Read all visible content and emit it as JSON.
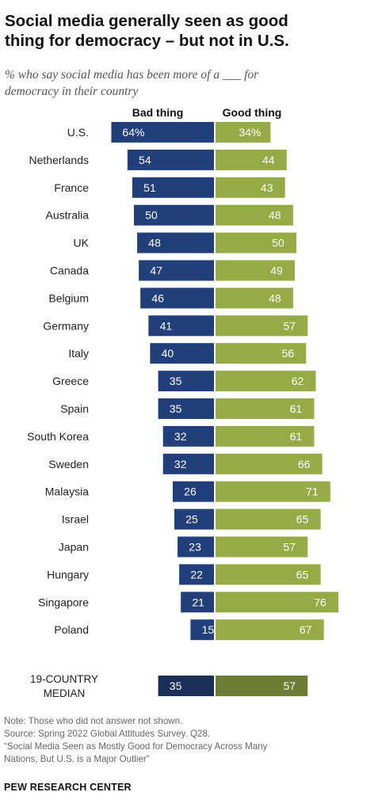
{
  "title_line1": "Social media generally seen as good",
  "title_line2": "thing for democracy – but not in U.S.",
  "subtitle_line1": "% who say social media has been more of a ___ for",
  "subtitle_line2": "democracy in their country",
  "notes": {
    "note": "Note: Those who did not answer not shown.",
    "source": "Source: Spring 2022 Global Attitudes Survey. Q28.",
    "report_line1": "“Social Media Seen as Mostly Good for Democracy Across Many",
    "report_line2": "Nations, But U.S. is a Major Outlier”"
  },
  "brand": "PEW RESEARCH CENTER",
  "colors": {
    "bad": "#213f7a",
    "good": "#96ab46",
    "bad_median": "#1b2f57",
    "good_median": "#6c7d35"
  },
  "chart_data": {
    "type": "bar",
    "orientation": "horizontal-diverging",
    "categories": [
      "U.S.",
      "Netherlands",
      "France",
      "Australia",
      "UK",
      "Canada",
      "Belgium",
      "Germany",
      "Italy",
      "Greece",
      "Spain",
      "South Korea",
      "Sweden",
      "Malaysia",
      "Israel",
      "Japan",
      "Hungary",
      "Singapore",
      "Poland"
    ],
    "series": [
      {
        "name": "Bad thing",
        "values": [
          64,
          54,
          51,
          50,
          48,
          47,
          46,
          41,
          40,
          35,
          35,
          32,
          32,
          26,
          25,
          23,
          22,
          21,
          15
        ]
      },
      {
        "name": "Good thing",
        "values": [
          34,
          44,
          43,
          48,
          50,
          49,
          48,
          57,
          56,
          62,
          61,
          61,
          66,
          71,
          65,
          57,
          65,
          76,
          67
        ]
      }
    ],
    "value_labels": {
      "Bad thing": [
        "64%",
        "54",
        "51",
        "50",
        "48",
        "47",
        "46",
        "41",
        "40",
        "35",
        "35",
        "32",
        "32",
        "26",
        "25",
        "23",
        "22",
        "21",
        "15"
      ],
      "Good thing": [
        "34%",
        "44",
        "43",
        "48",
        "50",
        "49",
        "48",
        "57",
        "56",
        "62",
        "61",
        "61",
        "66",
        "71",
        "65",
        "57",
        "65",
        "76",
        "67"
      ]
    },
    "median": {
      "label_line1": "19-COUNTRY",
      "label_line2": "MEDIAN",
      "bad": 35,
      "good": 57
    }
  }
}
